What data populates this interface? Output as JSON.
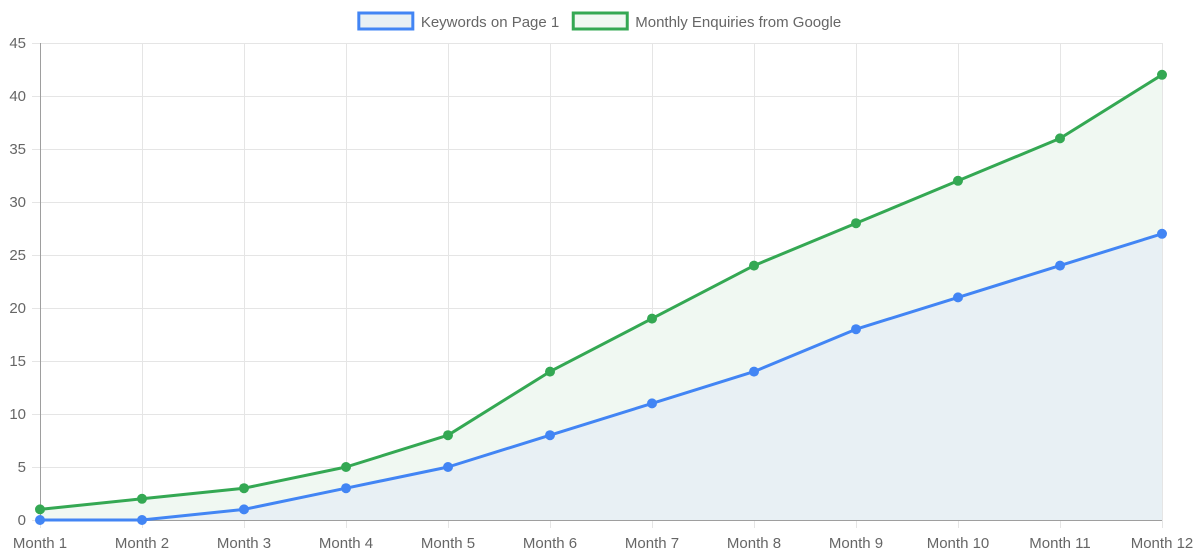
{
  "chart_data": {
    "type": "area",
    "title": "",
    "xlabel": "",
    "ylabel": "",
    "categories": [
      "Month 1",
      "Month 2",
      "Month 3",
      "Month 4",
      "Month 5",
      "Month 6",
      "Month 7",
      "Month 8",
      "Month 9",
      "Month 10",
      "Month 11",
      "Month 12"
    ],
    "ylim": [
      0,
      45
    ],
    "yticks": [
      0,
      5,
      10,
      15,
      20,
      25,
      30,
      35,
      40,
      45
    ],
    "grid": true,
    "legend_position": "top-center",
    "series": [
      {
        "name": "Keywords on Page 1",
        "values": [
          0,
          0,
          1,
          3,
          5,
          8,
          11,
          14,
          18,
          21,
          24,
          27
        ],
        "color": "#4285f4",
        "fill": "#e8f0f4"
      },
      {
        "name": "Monthly Enquiries from Google",
        "values": [
          1,
          2,
          3,
          5,
          8,
          14,
          19,
          24,
          28,
          32,
          36,
          42
        ],
        "color": "#34a853",
        "fill": "#f0f8f2"
      }
    ]
  }
}
